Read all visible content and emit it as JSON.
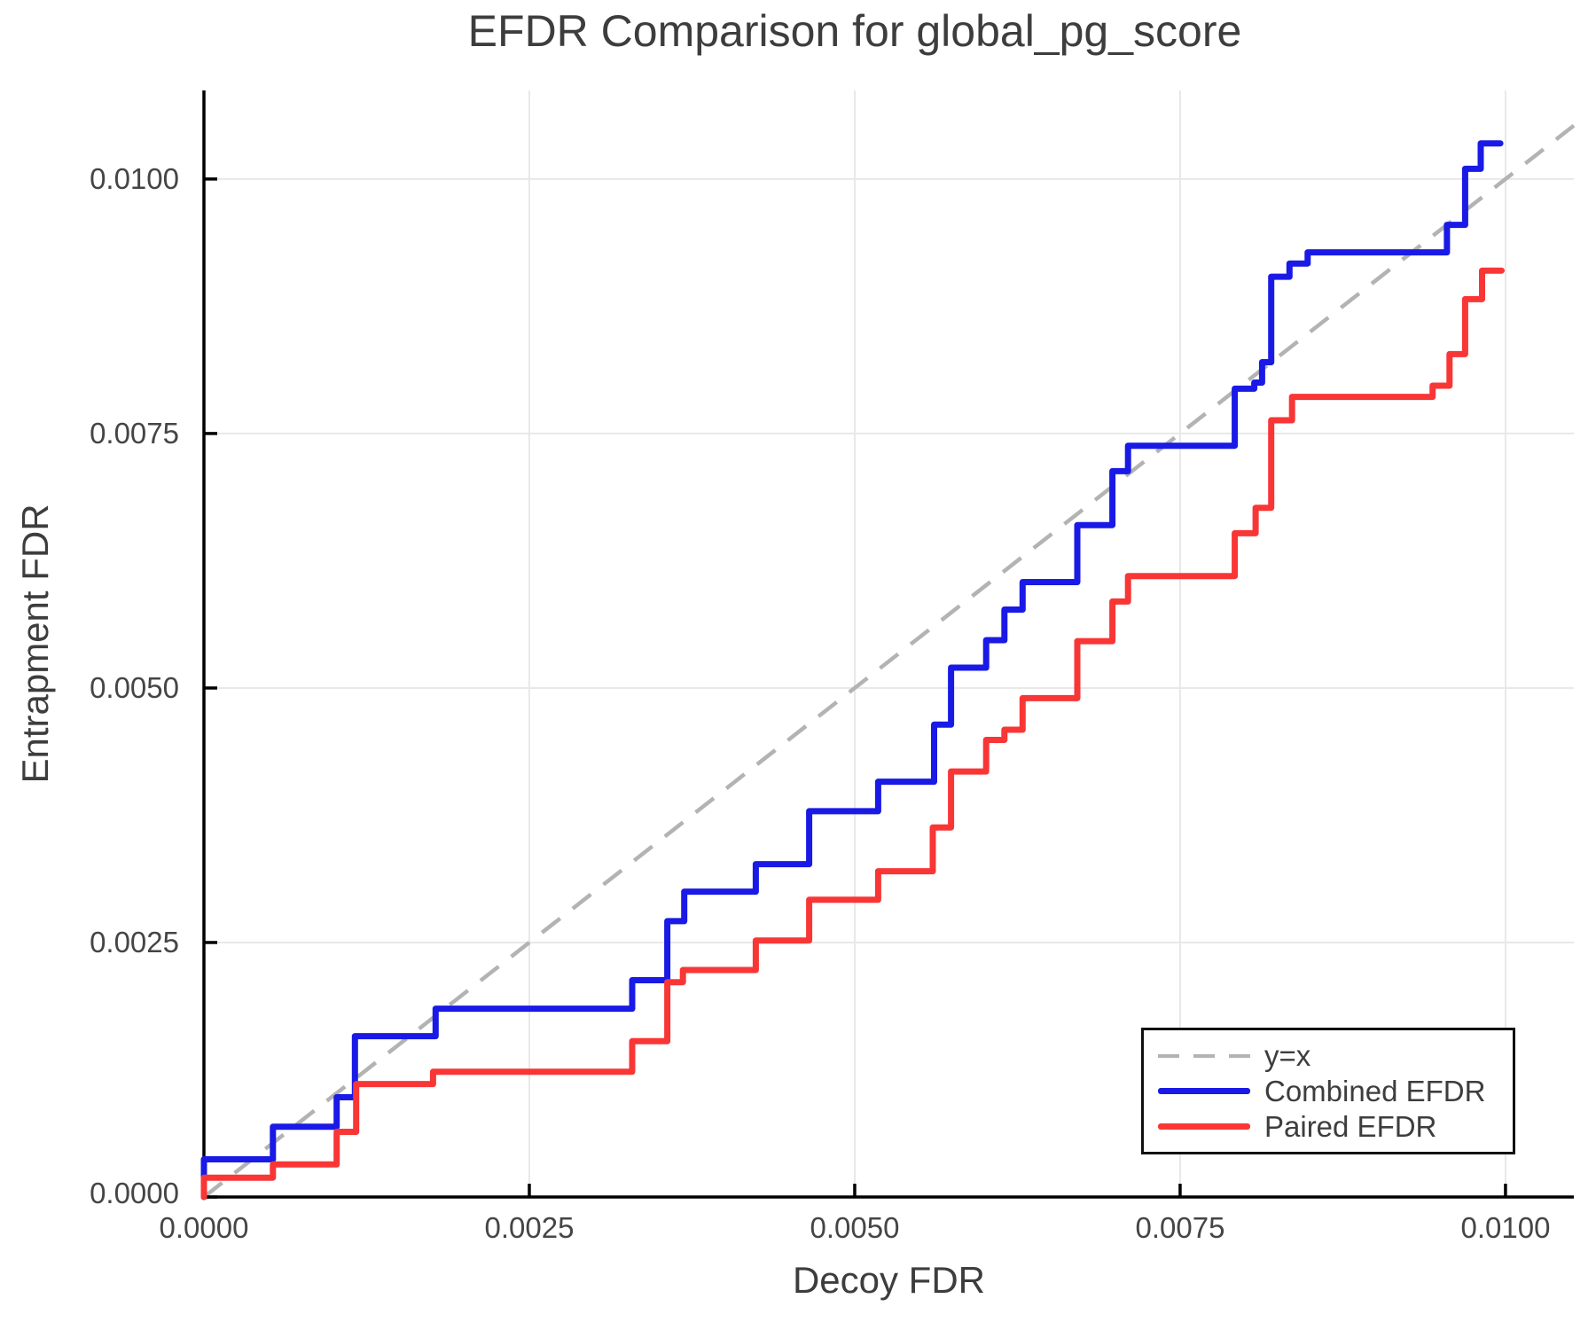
{
  "chart_data": {
    "type": "line",
    "subtype": "step-after",
    "title": "EFDR Comparison for global_pg_score",
    "xlabel": "Decoy FDR",
    "ylabel": "Entrapment FDR",
    "xlim": [
      0,
      0.010525
    ],
    "ylim": [
      0,
      0.01087
    ],
    "x_ticks": [
      0,
      0.0025,
      0.005,
      0.0075,
      0.01
    ],
    "y_ticks": [
      0,
      0.0025,
      0.005,
      0.0075,
      0.01
    ],
    "x_tick_labels": [
      "0.0000",
      "0.0025",
      "0.0050",
      "0.0075",
      "0.0100"
    ],
    "y_tick_labels_top_to_bottom": [
      "0.0100",
      "0.0075",
      "0.0050",
      "0.0025",
      "0.0000"
    ],
    "grid": true,
    "legend_position": "bottom-right",
    "colors": {
      "grid": "#e8e8e8",
      "axis": "#000000",
      "text": "#3d3d3d",
      "combined": "#1a1ae6",
      "paired": "#f93636",
      "identity": "#b3b3b3"
    },
    "reference_line": {
      "label": "y=x",
      "style": "dashed",
      "color": "#b3b3b3",
      "from": [
        0,
        0
      ],
      "to": [
        0.010525,
        0.010525
      ]
    },
    "series": [
      {
        "name": "Combined EFDR",
        "color": "#1a1ae6",
        "style": "step-after",
        "line_width": 7,
        "end_x": 0.00996,
        "points": [
          [
            0.0,
            0.00037
          ],
          [
            0.00053,
            0.00069
          ],
          [
            0.00102,
            0.00098
          ],
          [
            0.00116,
            0.00158
          ],
          [
            0.00178,
            0.00185
          ],
          [
            0.00329,
            0.00213
          ],
          [
            0.00356,
            0.00271
          ],
          [
            0.00369,
            0.003
          ],
          [
            0.00424,
            0.00327
          ],
          [
            0.00465,
            0.00379
          ],
          [
            0.00518,
            0.00408
          ],
          [
            0.00561,
            0.00464
          ],
          [
            0.00574,
            0.0052
          ],
          [
            0.00601,
            0.00547
          ],
          [
            0.00615,
            0.00577
          ],
          [
            0.00629,
            0.00604
          ],
          [
            0.00671,
            0.0066
          ],
          [
            0.00698,
            0.00713
          ],
          [
            0.0071,
            0.00738
          ],
          [
            0.00792,
            0.00794
          ],
          [
            0.00807,
            0.008
          ],
          [
            0.00813,
            0.0082
          ],
          [
            0.0082,
            0.00904
          ],
          [
            0.00834,
            0.00917
          ],
          [
            0.00848,
            0.00928
          ],
          [
            0.00955,
            0.00955
          ],
          [
            0.00969,
            0.0101
          ],
          [
            0.00981,
            0.01035
          ]
        ]
      },
      {
        "name": "Paired EFDR",
        "color": "#f93636",
        "style": "step-after",
        "line_width": 7,
        "end_x": 0.00997,
        "points": [
          [
            0.0,
            0.00019
          ],
          [
            0.00053,
            0.00032
          ],
          [
            0.00102,
            0.00064
          ],
          [
            0.00117,
            0.00111
          ],
          [
            0.00176,
            0.00123
          ],
          [
            0.00329,
            0.00153
          ],
          [
            0.00356,
            0.00211
          ],
          [
            0.00368,
            0.00223
          ],
          [
            0.00424,
            0.00252
          ],
          [
            0.00465,
            0.00292
          ],
          [
            0.00518,
            0.0032
          ],
          [
            0.0056,
            0.00363
          ],
          [
            0.00574,
            0.00418
          ],
          [
            0.00601,
            0.00449
          ],
          [
            0.00615,
            0.00459
          ],
          [
            0.00629,
            0.0049
          ],
          [
            0.00671,
            0.00546
          ],
          [
            0.00698,
            0.00585
          ],
          [
            0.0071,
            0.0061
          ],
          [
            0.00792,
            0.00652
          ],
          [
            0.00808,
            0.00677
          ],
          [
            0.0082,
            0.00763
          ],
          [
            0.00836,
            0.00786
          ],
          [
            0.00944,
            0.00797
          ],
          [
            0.00957,
            0.00828
          ],
          [
            0.00969,
            0.00882
          ],
          [
            0.00982,
            0.0091
          ]
        ]
      }
    ]
  }
}
